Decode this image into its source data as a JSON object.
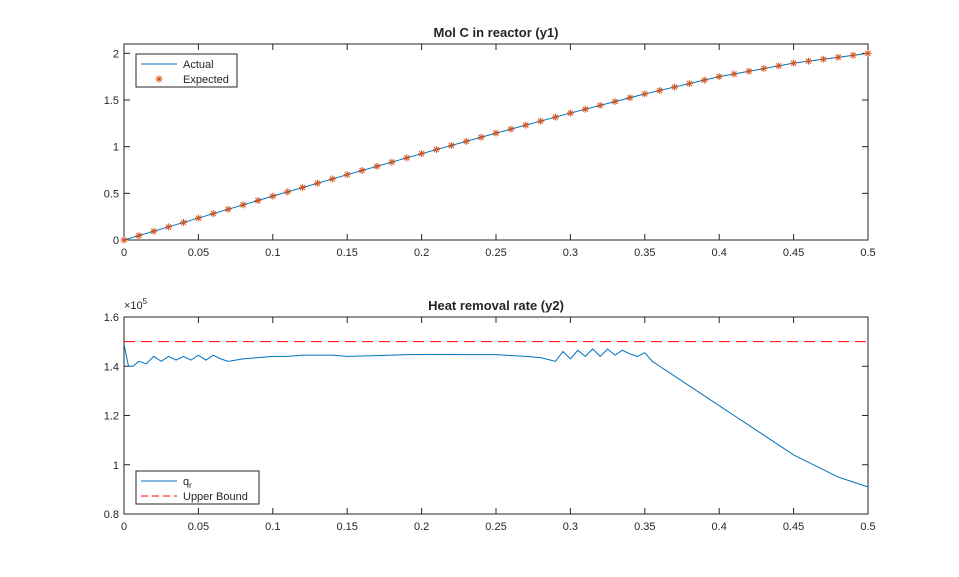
{
  "chart_data": [
    {
      "type": "line",
      "title": "Mol C in reactor (y1)",
      "xlabel": "",
      "ylabel": "",
      "xlim": [
        0,
        0.5
      ],
      "ylim": [
        0,
        2.1
      ],
      "xticks": [
        0,
        0.05,
        0.1,
        0.15,
        0.2,
        0.25,
        0.3,
        0.35,
        0.4,
        0.45,
        0.5
      ],
      "xtick_labels": [
        "0",
        "0.05",
        "0.1",
        "0.15",
        "0.2",
        "0.25",
        "0.3",
        "0.35",
        "0.4",
        "0.45",
        "0.5"
      ],
      "yticks": [
        0,
        0.5,
        1,
        1.5,
        2
      ],
      "ytick_labels": [
        "0",
        "0.5",
        "1",
        "1.5",
        "2"
      ],
      "legend_position": "top-left",
      "series": [
        {
          "name": "Actual",
          "style": "line",
          "color": "#0072BD",
          "x": [
            0,
            0.05,
            0.1,
            0.15,
            0.2,
            0.25,
            0.3,
            0.35,
            0.4,
            0.45,
            0.5
          ],
          "y": [
            0,
            0.235,
            0.47,
            0.7,
            0.925,
            1.145,
            1.36,
            1.565,
            1.75,
            1.895,
            2.0
          ]
        },
        {
          "name": "Expected",
          "style": "marker",
          "marker": "*",
          "color": "#D95319",
          "x": [
            0,
            0.01,
            0.02,
            0.03,
            0.04,
            0.05,
            0.06,
            0.07,
            0.08,
            0.09,
            0.1,
            0.11,
            0.12,
            0.13,
            0.14,
            0.15,
            0.16,
            0.17,
            0.18,
            0.19,
            0.2,
            0.21,
            0.22,
            0.23,
            0.24,
            0.25,
            0.26,
            0.27,
            0.28,
            0.29,
            0.3,
            0.31,
            0.32,
            0.33,
            0.34,
            0.35,
            0.36,
            0.37,
            0.38,
            0.39,
            0.4,
            0.41,
            0.42,
            0.43,
            0.44,
            0.45,
            0.46,
            0.47,
            0.48,
            0.49,
            0.5
          ],
          "y": [
            0,
            0.047,
            0.094,
            0.141,
            0.188,
            0.235,
            0.282,
            0.329,
            0.376,
            0.423,
            0.47,
            0.516,
            0.562,
            0.608,
            0.654,
            0.7,
            0.745,
            0.79,
            0.835,
            0.88,
            0.925,
            0.969,
            1.013,
            1.057,
            1.101,
            1.145,
            1.188,
            1.231,
            1.274,
            1.317,
            1.36,
            1.401,
            1.442,
            1.483,
            1.524,
            1.565,
            1.602,
            1.639,
            1.676,
            1.713,
            1.75,
            1.779,
            1.808,
            1.837,
            1.866,
            1.895,
            1.916,
            1.937,
            1.958,
            1.979,
            2.0
          ]
        }
      ]
    },
    {
      "type": "line",
      "title": "Heat removal rate (y2)",
      "xlabel": "",
      "ylabel": "",
      "y_exponent_label": "×10",
      "y_exponent": "5",
      "xlim": [
        0,
        0.5
      ],
      "ylim": [
        0.8,
        1.6
      ],
      "xticks": [
        0,
        0.05,
        0.1,
        0.15,
        0.2,
        0.25,
        0.3,
        0.35,
        0.4,
        0.45,
        0.5
      ],
      "xtick_labels": [
        "0",
        "0.05",
        "0.1",
        "0.15",
        "0.2",
        "0.25",
        "0.3",
        "0.35",
        "0.4",
        "0.45",
        "0.5"
      ],
      "yticks": [
        0.8,
        1,
        1.2,
        1.4,
        1.6
      ],
      "ytick_labels": [
        "0.8",
        "1",
        "1.2",
        "1.4",
        "1.6"
      ],
      "legend_position": "bottom-left",
      "series": [
        {
          "name": "qr",
          "name_base": "q",
          "name_sub": "r",
          "style": "line",
          "color": "#0072BD",
          "x": [
            0,
            0.003,
            0.006,
            0.01,
            0.015,
            0.02,
            0.025,
            0.03,
            0.035,
            0.04,
            0.045,
            0.05,
            0.055,
            0.06,
            0.065,
            0.07,
            0.075,
            0.08,
            0.09,
            0.1,
            0.11,
            0.12,
            0.13,
            0.14,
            0.15,
            0.17,
            0.19,
            0.21,
            0.23,
            0.25,
            0.27,
            0.28,
            0.29,
            0.295,
            0.3,
            0.305,
            0.31,
            0.315,
            0.32,
            0.325,
            0.33,
            0.335,
            0.34,
            0.345,
            0.35,
            0.355,
            0.36,
            0.37,
            0.38,
            0.39,
            0.4,
            0.41,
            0.42,
            0.43,
            0.44,
            0.45,
            0.46,
            0.47,
            0.48,
            0.49,
            0.5
          ],
          "y": [
            1.49,
            1.4,
            1.4,
            1.42,
            1.41,
            1.44,
            1.42,
            1.44,
            1.425,
            1.44,
            1.425,
            1.445,
            1.425,
            1.445,
            1.43,
            1.42,
            1.425,
            1.43,
            1.435,
            1.44,
            1.44,
            1.445,
            1.445,
            1.445,
            1.44,
            1.443,
            1.447,
            1.448,
            1.447,
            1.447,
            1.44,
            1.435,
            1.42,
            1.46,
            1.43,
            1.465,
            1.44,
            1.47,
            1.44,
            1.47,
            1.445,
            1.465,
            1.45,
            1.44,
            1.455,
            1.42,
            1.4,
            1.36,
            1.32,
            1.28,
            1.24,
            1.2,
            1.16,
            1.12,
            1.08,
            1.04,
            1.01,
            0.98,
            0.95,
            0.93,
            0.91
          ]
        },
        {
          "name": "Upper Bound",
          "style": "dashed",
          "color": "#FF0000",
          "x": [
            0,
            0.5
          ],
          "y": [
            1.5,
            1.5
          ]
        }
      ]
    }
  ]
}
